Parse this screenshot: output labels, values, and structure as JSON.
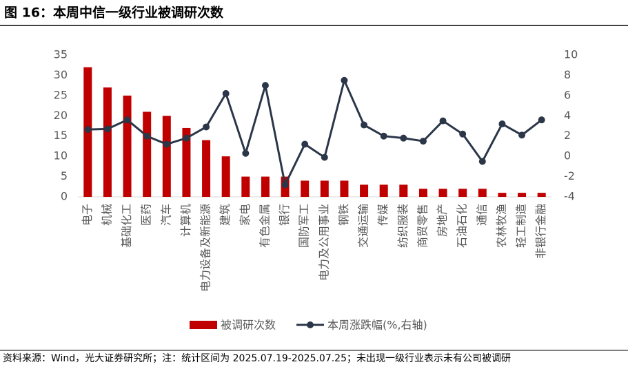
{
  "chart_data": {
    "type": "combo",
    "title": "图 16：本周中信一级行业被调研次数",
    "source": "资料来源：Wind，光大证券研究所；注：统计区间为 2025.07.19-2025.07.25；未出现一级行业表示未有公司被调研",
    "categories": [
      "电子",
      "机械",
      "基础化工",
      "医药",
      "汽车",
      "计算机",
      "电力设备及新能源",
      "建筑",
      "家电",
      "有色金属",
      "银行",
      "国防军工",
      "电力及公用事业",
      "钢铁",
      "交通运输",
      "传媒",
      "纺织服装",
      "商贸零售",
      "房地产",
      "石油石化",
      "通信",
      "农林牧渔",
      "轻工制造",
      "非银行金融"
    ],
    "series": [
      {
        "name": "被调研次数",
        "type": "bar",
        "color": "#c00000",
        "values": [
          32,
          27,
          25,
          21,
          20,
          17,
          14,
          10,
          5,
          5,
          5,
          4,
          4,
          4,
          3,
          3,
          3,
          2,
          2,
          2,
          2,
          1,
          1,
          1
        ]
      },
      {
        "name": "本周涨跌幅(%,右轴)",
        "type": "line",
        "axis": "y2",
        "color": "#2b3648",
        "values": [
          2.65,
          2.7,
          3.6,
          2.0,
          1.2,
          1.8,
          2.9,
          6.2,
          0.3,
          7.0,
          -2.8,
          1.2,
          -0.1,
          7.5,
          3.1,
          2.0,
          1.8,
          1.5,
          3.5,
          2.2,
          -0.5,
          3.2,
          2.1,
          3.6
        ]
      }
    ],
    "ylim": [
      0,
      35
    ],
    "yticks": [
      0,
      5,
      10,
      15,
      20,
      25,
      30,
      35
    ],
    "y2lim": [
      -4,
      10
    ],
    "y2ticks": [
      -4,
      -2,
      0,
      2,
      4,
      6,
      8,
      10
    ],
    "grid": false
  }
}
